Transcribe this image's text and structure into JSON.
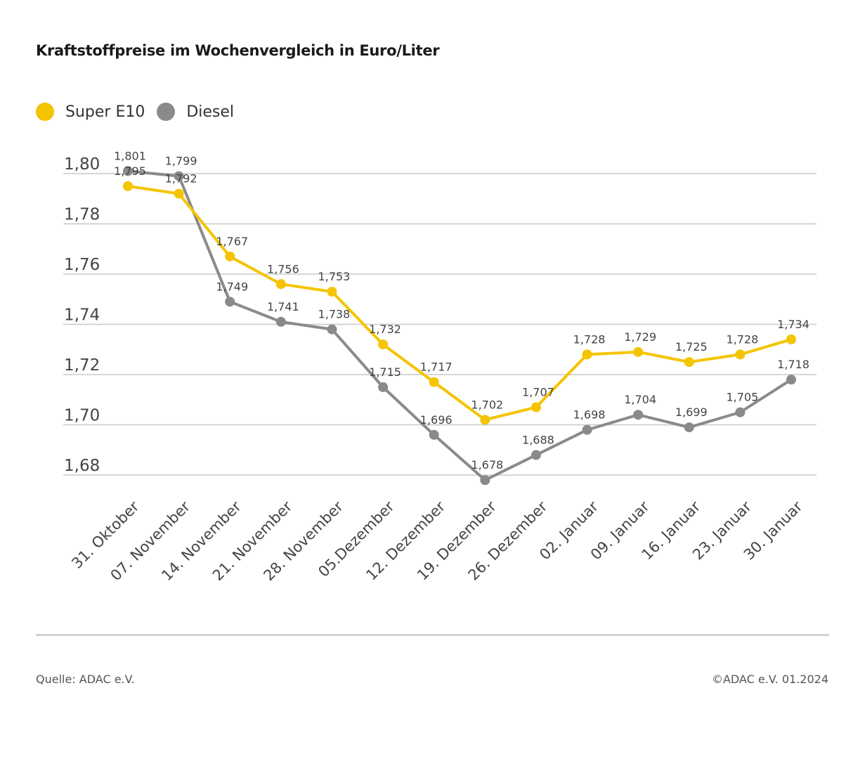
{
  "title": "Kraftstoffpreise im Wochenvergleich in Euro/Liter",
  "source": "Quelle: ADAC e.V.",
  "copyright": "©ADAC e.V. 01.2024",
  "colors": {
    "super": "#f5c400",
    "diesel": "#8a8a8a",
    "grid": "#c8c8c8"
  },
  "legend": [
    {
      "label": "Super E10",
      "color": "#f5c400"
    },
    {
      "label": "Diesel",
      "color": "#8a8a8a"
    }
  ],
  "chart_data": {
    "type": "line",
    "categories": [
      "31. Oktober",
      "07. November",
      "14. November",
      "21. November",
      "28. November",
      "05.Dezember",
      "12. Dezember",
      "19. Dezember",
      "26. Dezember",
      "02. Januar",
      "09. Januar",
      "16. Januar",
      "23. Januar",
      "30. Januar"
    ],
    "series": [
      {
        "name": "Super E10",
        "color": "#f5c400",
        "values": [
          1.795,
          1.792,
          1.767,
          1.756,
          1.753,
          1.732,
          1.717,
          1.702,
          1.707,
          1.728,
          1.729,
          1.725,
          1.728,
          1.734
        ],
        "labels": [
          "1,795",
          "1,792",
          "1,767",
          "1,756",
          "1,753",
          "1,732",
          "1,717",
          "1,702",
          "1,707",
          "1,728",
          "1,729",
          "1,725",
          "1,728",
          "1,734"
        ]
      },
      {
        "name": "Diesel",
        "color": "#8a8a8a",
        "values": [
          1.801,
          1.799,
          1.749,
          1.741,
          1.738,
          1.715,
          1.696,
          1.678,
          1.688,
          1.698,
          1.704,
          1.699,
          1.705,
          1.718
        ],
        "labels": [
          "1,801",
          "1,799",
          "1,749",
          "1,741",
          "1,738",
          "1,715",
          "1,696",
          "1,678",
          "1,688",
          "1,698",
          "1,704",
          "1,699",
          "1,705",
          "1,718"
        ]
      }
    ],
    "yticks": [
      1.8,
      1.78,
      1.76,
      1.74,
      1.72,
      1.7,
      1.68
    ],
    "ytick_labels": [
      "1,80",
      "1,78",
      "1,76",
      "1,74",
      "1,72",
      "1,70",
      "1,68"
    ],
    "ylim": [
      1.68,
      1.8
    ],
    "grid": true,
    "legend_position": "top-left"
  }
}
